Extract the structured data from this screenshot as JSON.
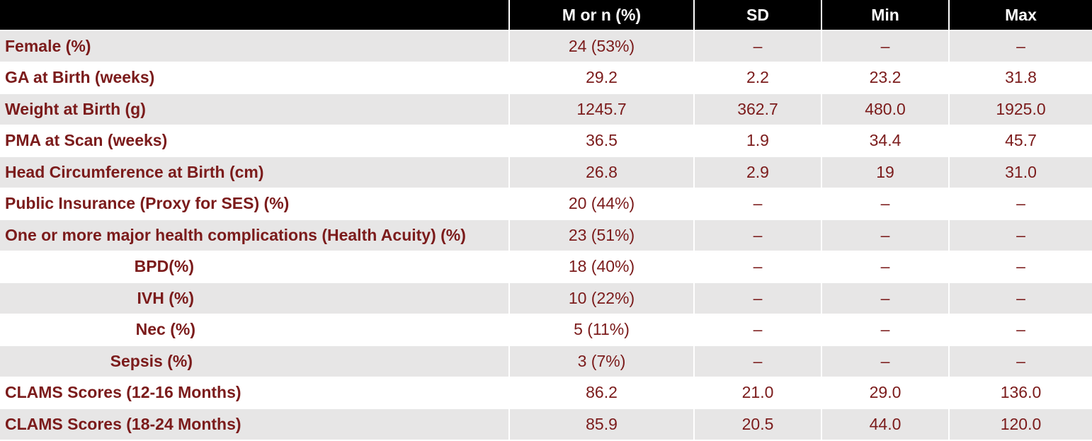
{
  "header": {
    "label": "",
    "m_or_n": "M or n (%)",
    "sd": "SD",
    "min": "Min",
    "max": "Max"
  },
  "rows": [
    {
      "label": "Female (%)",
      "m": "24 (53%)",
      "sd": "–",
      "min": "–",
      "max": "–"
    },
    {
      "label": "GA at Birth (weeks)",
      "m": "29.2",
      "sd": "2.2",
      "min": "23.2",
      "max": "31.8"
    },
    {
      "label": "Weight at Birth (g)",
      "m": "1245.7",
      "sd": "362.7",
      "min": "480.0",
      "max": "1925.0"
    },
    {
      "label": "PMA at Scan (weeks)",
      "m": "36.5",
      "sd": "1.9",
      "min": "34.4",
      "max": "45.7"
    },
    {
      "label": "Head Circumference at Birth (cm)",
      "m": "26.8",
      "sd": "2.9",
      "min": "19",
      "max": "31.0"
    },
    {
      "label": "Public Insurance (Proxy for SES) (%)",
      "m": "20 (44%)",
      "sd": "–",
      "min": "–",
      "max": "–"
    },
    {
      "label": "One or more major health complications (Health Acuity) (%)",
      "m": "23 (51%)",
      "sd": "–",
      "min": "–",
      "max": "–"
    },
    {
      "label": "BPD(%)",
      "m": "18 (40%)",
      "sd": "–",
      "min": "–",
      "max": "–"
    },
    {
      "label": "IVH (%)",
      "m": "10 (22%)",
      "sd": "–",
      "min": "–",
      "max": "–"
    },
    {
      "label": "Nec (%)",
      "m": "5 (11%)",
      "sd": "–",
      "min": "–",
      "max": "–"
    },
    {
      "label": "Sepsis (%)",
      "m": "3 (7%)",
      "sd": "–",
      "min": "–",
      "max": "–"
    },
    {
      "label": "CLAMS Scores (12-16 Months)",
      "m": "86.2",
      "sd": "21.0",
      "min": "29.0",
      "max": "136.0"
    },
    {
      "label": "CLAMS Scores (18-24 Months)",
      "m": "85.9",
      "sd": "20.5",
      "min": "44.0",
      "max": "120.0"
    }
  ],
  "colors": {
    "header_bg": "#000000",
    "header_text": "#ffffff",
    "row_alt_bg": "#e7e6e6",
    "row_plain_bg": "#ffffff",
    "body_text": "#7b1b1b"
  }
}
